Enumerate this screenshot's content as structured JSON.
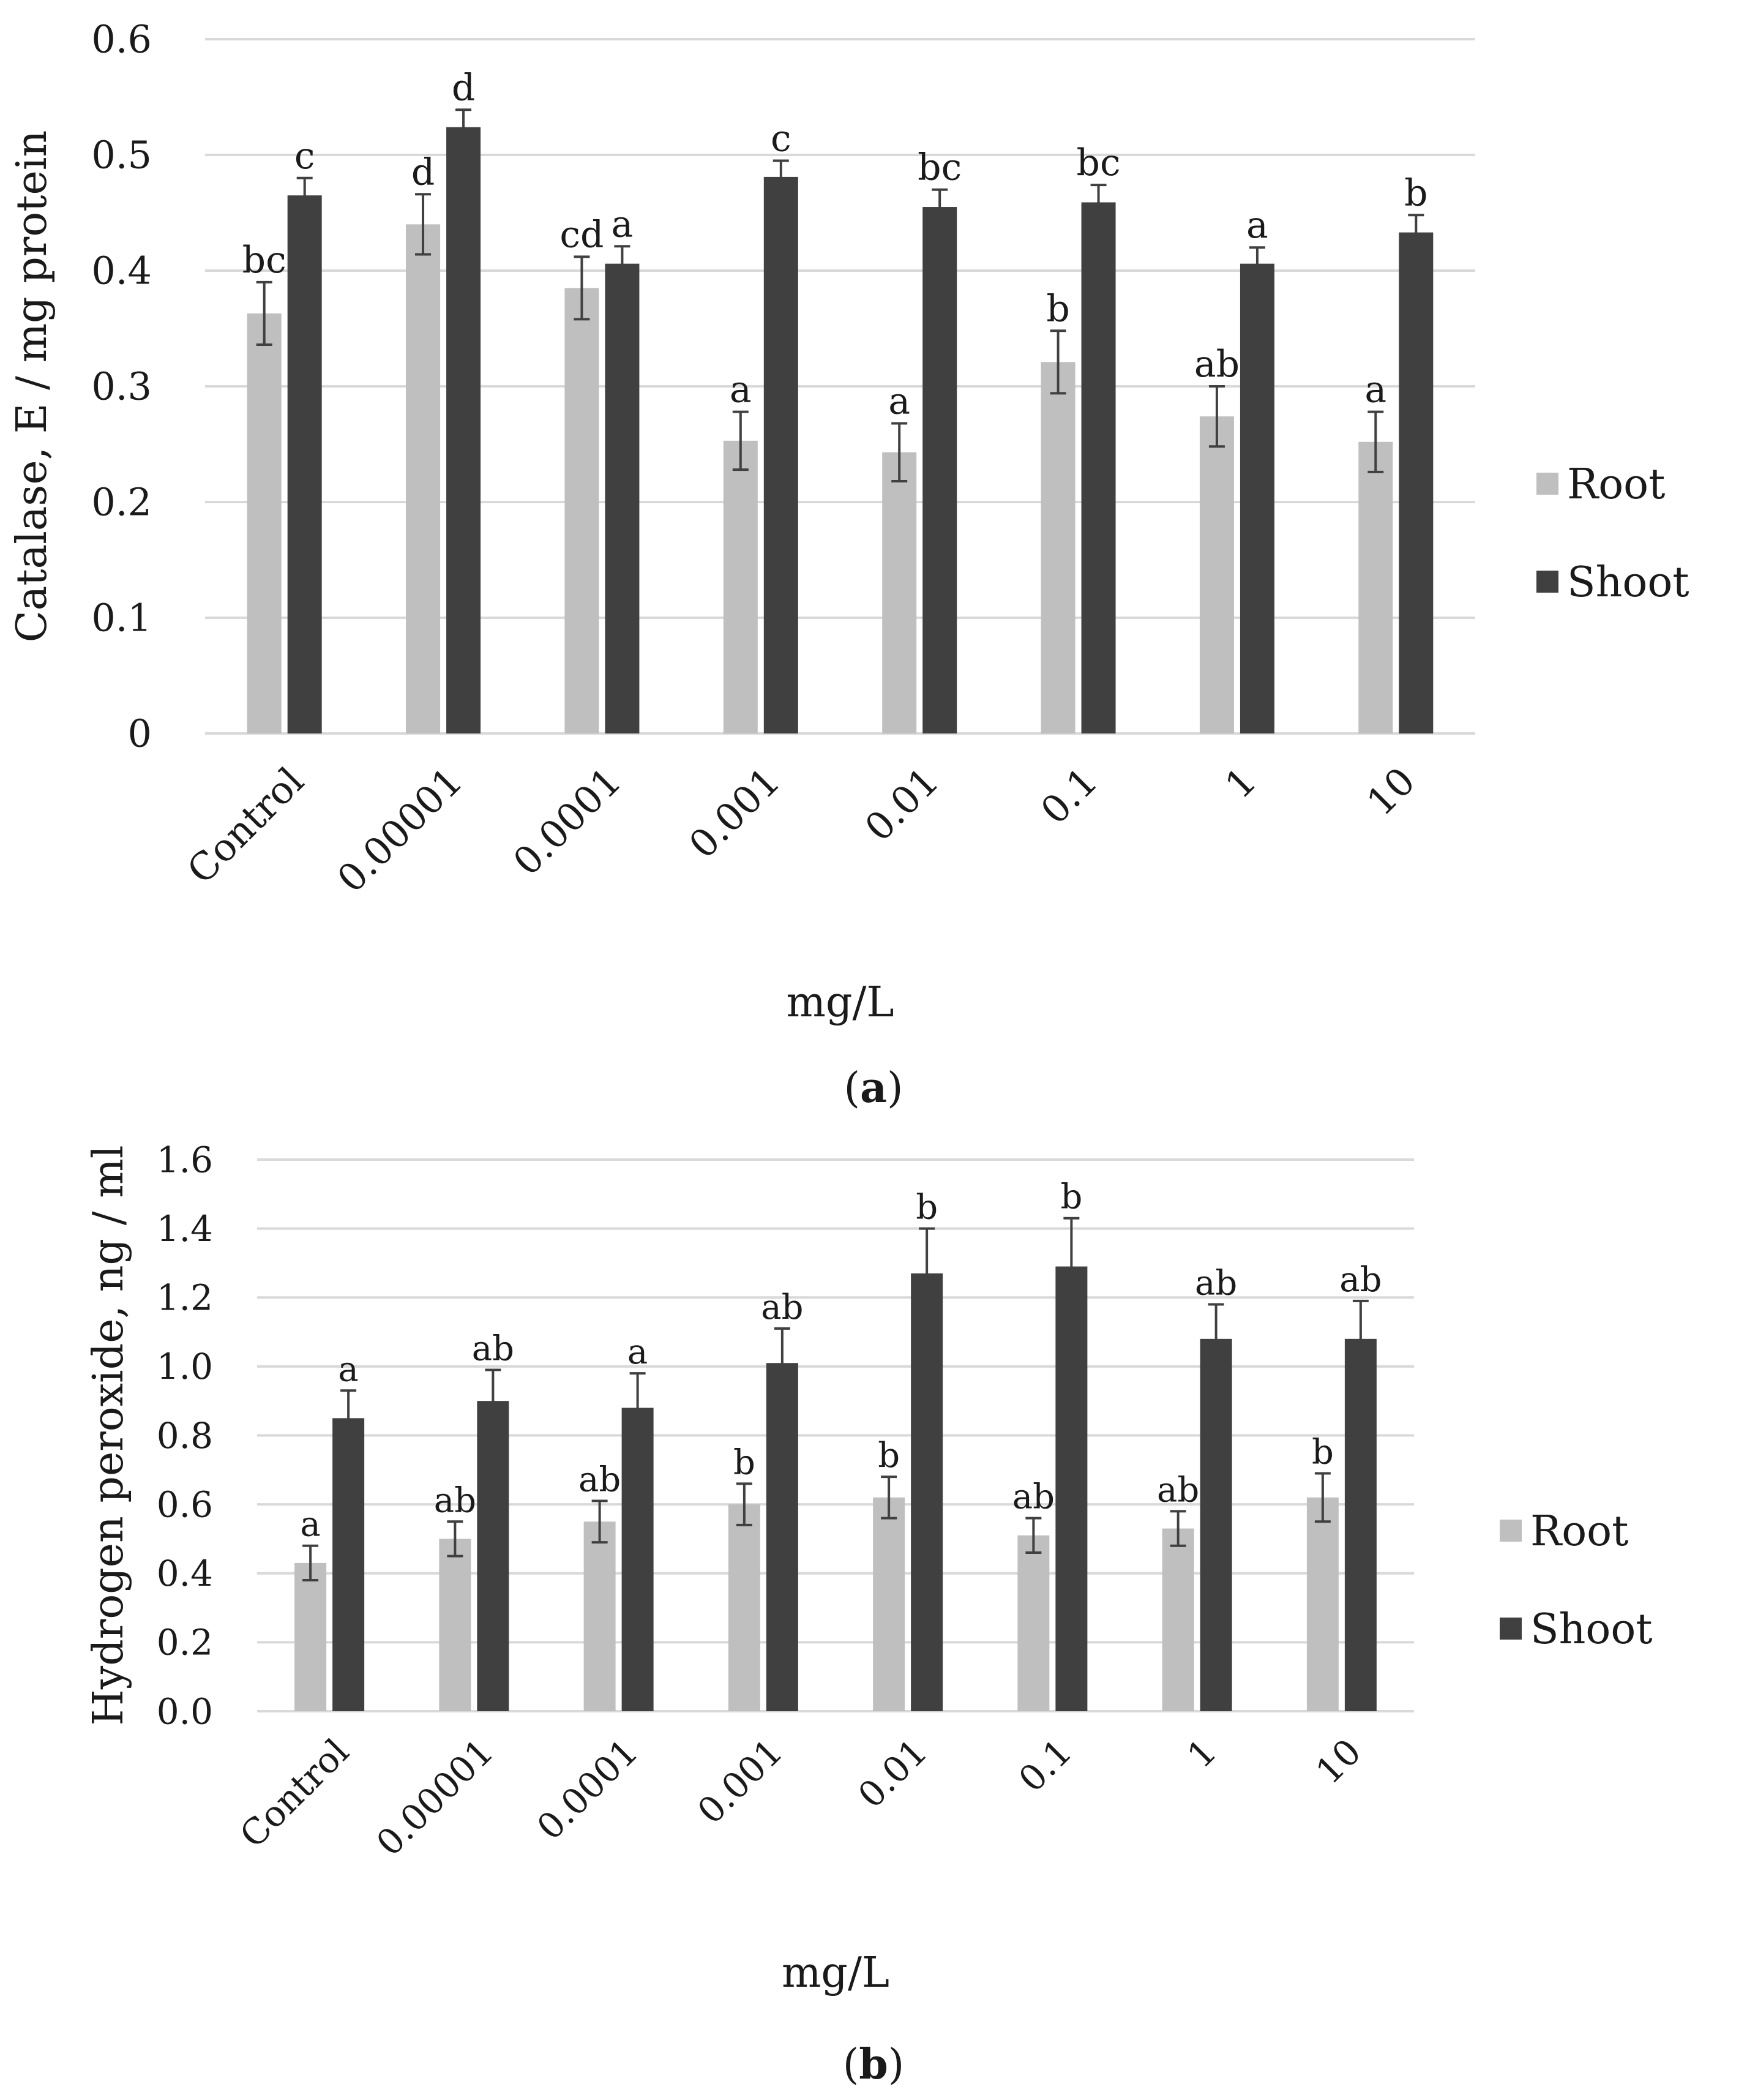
{
  "chart_data": [
    {
      "type": "bar",
      "panel_label": "a",
      "title": "",
      "xlabel": "mg/L",
      "ylabel": "Catalase, E / mg protein",
      "categories": [
        "Control",
        "0.00001",
        "0.0001",
        "0.001",
        "0.01",
        "0.1",
        "1",
        "10"
      ],
      "ylim": [
        0,
        0.6
      ],
      "yticks": [
        "0",
        "0.1",
        "0.2",
        "0.3",
        "0.4",
        "0.5",
        "0.6"
      ],
      "grid": true,
      "legend": "right",
      "series": [
        {
          "name": "Root",
          "color": "#bfbfbf",
          "values": [
            0.363,
            0.44,
            0.385,
            0.253,
            0.243,
            0.321,
            0.274,
            0.252
          ],
          "errors": [
            0.027,
            0.026,
            0.027,
            0.025,
            0.025,
            0.027,
            0.026,
            0.026
          ],
          "letters": [
            "bc",
            "d",
            "cd",
            "a",
            "a",
            "b",
            "ab",
            "a"
          ]
        },
        {
          "name": "Shoot",
          "color": "#404040",
          "values": [
            0.465,
            0.524,
            0.406,
            0.481,
            0.455,
            0.459,
            0.406,
            0.433
          ],
          "errors": [
            0.015,
            0.015,
            0.015,
            0.014,
            0.015,
            0.015,
            0.014,
            0.015
          ],
          "letters": [
            "c",
            "d",
            "a",
            "c",
            "bc",
            "bc",
            "a",
            "b"
          ]
        }
      ]
    },
    {
      "type": "bar",
      "panel_label": "b",
      "title": "",
      "xlabel": "mg/L",
      "ylabel": "Hydrogen peroxide, ng / ml",
      "categories": [
        "Control",
        "0.00001",
        "0.0001",
        "0.001",
        "0.01",
        "0.1",
        "1",
        "10"
      ],
      "ylim": [
        0,
        1.6
      ],
      "yticks": [
        "0.0",
        "0.2",
        "0.4",
        "0.6",
        "0.8",
        "1.0",
        "1.2",
        "1.4",
        "1.6"
      ],
      "grid": true,
      "legend": "right",
      "series": [
        {
          "name": "Root",
          "color": "#bfbfbf",
          "values": [
            0.43,
            0.5,
            0.55,
            0.6,
            0.62,
            0.51,
            0.53,
            0.62
          ],
          "errors": [
            0.05,
            0.05,
            0.06,
            0.06,
            0.06,
            0.05,
            0.05,
            0.07
          ],
          "letters": [
            "a",
            "ab",
            "ab",
            "b",
            "b",
            "ab",
            "ab",
            "b"
          ]
        },
        {
          "name": "Shoot",
          "color": "#404040",
          "values": [
            0.85,
            0.9,
            0.88,
            1.01,
            1.27,
            1.29,
            1.08,
            1.08
          ],
          "errors": [
            0.08,
            0.09,
            0.1,
            0.1,
            0.13,
            0.14,
            0.1,
            0.11
          ],
          "letters": [
            "a",
            "ab",
            "a",
            "ab",
            "b",
            "b",
            "ab",
            "ab"
          ]
        }
      ]
    }
  ],
  "colors": {
    "grid": "#d9d9d9",
    "error_bar": "#404040",
    "text": "#1a1a1a"
  }
}
